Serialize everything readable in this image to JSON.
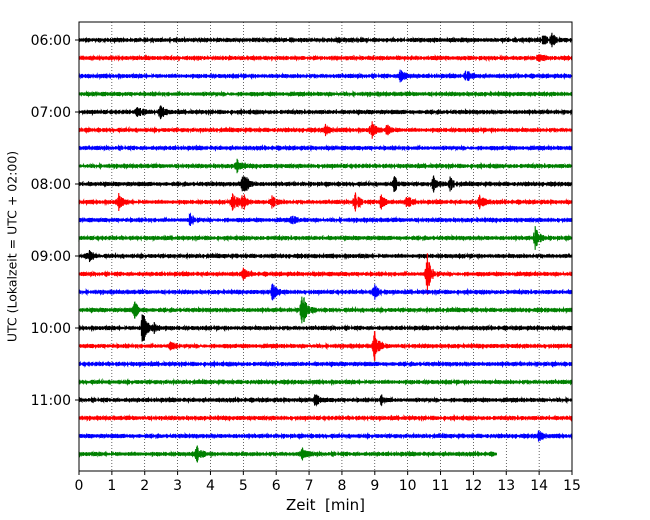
{
  "chart_data": {
    "type": "line",
    "title": "",
    "xlabel": "Zeit  [min]",
    "ylabel": "UTC (Lokalzeit = UTC + 02:00)",
    "xlim": [
      0,
      15
    ],
    "x_ticks": [
      0,
      1,
      2,
      3,
      4,
      5,
      6,
      7,
      8,
      9,
      10,
      11,
      12,
      13,
      14,
      15
    ],
    "x_tick_labels": [
      "0",
      "1",
      "2",
      "3",
      "4",
      "5",
      "6",
      "7",
      "8",
      "9",
      "10",
      "11",
      "12",
      "13",
      "14",
      "15"
    ],
    "grid": "vertical dotted lines at each minute",
    "y_tick_labels": [
      "06:00",
      "07:00",
      "08:00",
      "09:00",
      "10:00",
      "11:00"
    ],
    "y_tick_trace_index": [
      0,
      4,
      8,
      12,
      16,
      20
    ],
    "trace_interval_minutes": 15,
    "color_cycle": [
      "#000000",
      "#ff0000",
      "#0000ff",
      "#008000"
    ],
    "traces": [
      {
        "start": "06:00",
        "color": "#000000",
        "end_min": 15,
        "events": [
          {
            "t": 14.1,
            "amp": 0.45
          },
          {
            "t": 14.4,
            "amp": 0.5
          }
        ]
      },
      {
        "start": "06:15",
        "color": "#ff0000",
        "end_min": 15,
        "events": [
          {
            "t": 14.0,
            "amp": 0.45
          }
        ]
      },
      {
        "start": "06:30",
        "color": "#0000ff",
        "end_min": 15,
        "events": [
          {
            "t": 9.8,
            "amp": 0.6
          },
          {
            "t": 11.8,
            "amp": 0.55
          }
        ]
      },
      {
        "start": "06:45",
        "color": "#008000",
        "end_min": 15,
        "events": []
      },
      {
        "start": "07:00",
        "color": "#000000",
        "end_min": 15,
        "events": [
          {
            "t": 1.8,
            "amp": 0.6
          },
          {
            "t": 2.5,
            "amp": 0.55
          }
        ]
      },
      {
        "start": "07:15",
        "color": "#ff0000",
        "end_min": 15,
        "events": [
          {
            "t": 7.5,
            "amp": 0.4
          },
          {
            "t": 8.9,
            "amp": 0.75
          },
          {
            "t": 9.4,
            "amp": 0.6
          }
        ]
      },
      {
        "start": "07:30",
        "color": "#0000ff",
        "end_min": 15,
        "events": []
      },
      {
        "start": "07:45",
        "color": "#008000",
        "end_min": 15,
        "events": [
          {
            "t": 4.8,
            "amp": 0.6
          }
        ]
      },
      {
        "start": "08:00",
        "color": "#000000",
        "end_min": 15,
        "events": [
          {
            "t": 5.0,
            "amp": 1.5
          },
          {
            "t": 9.6,
            "amp": 0.6
          },
          {
            "t": 10.8,
            "amp": 0.65
          },
          {
            "t": 11.3,
            "amp": 0.55
          }
        ]
      },
      {
        "start": "08:15",
        "color": "#ff0000",
        "end_min": 15,
        "events": [
          {
            "t": 1.2,
            "amp": 0.7
          },
          {
            "t": 4.7,
            "amp": 0.9
          },
          {
            "t": 5.0,
            "amp": 0.7
          },
          {
            "t": 5.9,
            "amp": 0.6
          },
          {
            "t": 8.4,
            "amp": 0.9
          },
          {
            "t": 9.2,
            "amp": 0.6
          },
          {
            "t": 10.0,
            "amp": 0.5
          },
          {
            "t": 12.2,
            "amp": 0.7
          }
        ]
      },
      {
        "start": "08:30",
        "color": "#0000ff",
        "end_min": 15,
        "events": [
          {
            "t": 3.4,
            "amp": 0.55
          },
          {
            "t": 6.5,
            "amp": 0.35
          }
        ]
      },
      {
        "start": "08:45",
        "color": "#008000",
        "end_min": 15,
        "events": [
          {
            "t": 13.9,
            "amp": 1.1
          }
        ]
      },
      {
        "start": "09:00",
        "color": "#000000",
        "end_min": 15,
        "events": [
          {
            "t": 0.3,
            "amp": 0.5
          }
        ]
      },
      {
        "start": "09:15",
        "color": "#ff0000",
        "end_min": 15,
        "events": [
          {
            "t": 5.0,
            "amp": 0.5
          },
          {
            "t": 10.6,
            "amp": 1.8
          }
        ]
      },
      {
        "start": "09:30",
        "color": "#0000ff",
        "end_min": 15,
        "events": [
          {
            "t": 5.9,
            "amp": 0.75
          },
          {
            "t": 9.0,
            "amp": 0.6
          }
        ]
      },
      {
        "start": "09:45",
        "color": "#008000",
        "end_min": 15,
        "events": [
          {
            "t": 1.7,
            "amp": 0.65
          },
          {
            "t": 6.8,
            "amp": 1.6
          }
        ]
      },
      {
        "start": "10:00",
        "color": "#000000",
        "end_min": 15,
        "events": [
          {
            "t": 1.95,
            "amp": 1.5
          },
          {
            "t": 2.3,
            "amp": 0.4
          }
        ]
      },
      {
        "start": "10:15",
        "color": "#ff0000",
        "end_min": 15,
        "events": [
          {
            "t": 9.0,
            "amp": 1.2
          },
          {
            "t": 2.8,
            "amp": 0.4
          }
        ]
      },
      {
        "start": "10:30",
        "color": "#0000ff",
        "end_min": 15,
        "events": []
      },
      {
        "start": "10:45",
        "color": "#008000",
        "end_min": 15,
        "events": []
      },
      {
        "start": "11:00",
        "color": "#000000",
        "end_min": 15,
        "events": [
          {
            "t": 7.2,
            "amp": 0.45
          },
          {
            "t": 9.2,
            "amp": 0.35
          }
        ]
      },
      {
        "start": "11:15",
        "color": "#ff0000",
        "end_min": 15,
        "events": []
      },
      {
        "start": "11:30",
        "color": "#0000ff",
        "end_min": 15,
        "events": [
          {
            "t": 14.0,
            "amp": 0.4
          }
        ]
      },
      {
        "start": "11:45",
        "color": "#008000",
        "end_min": 12.7,
        "events": [
          {
            "t": 3.6,
            "amp": 0.7
          },
          {
            "t": 6.8,
            "amp": 0.55
          }
        ]
      }
    ]
  }
}
